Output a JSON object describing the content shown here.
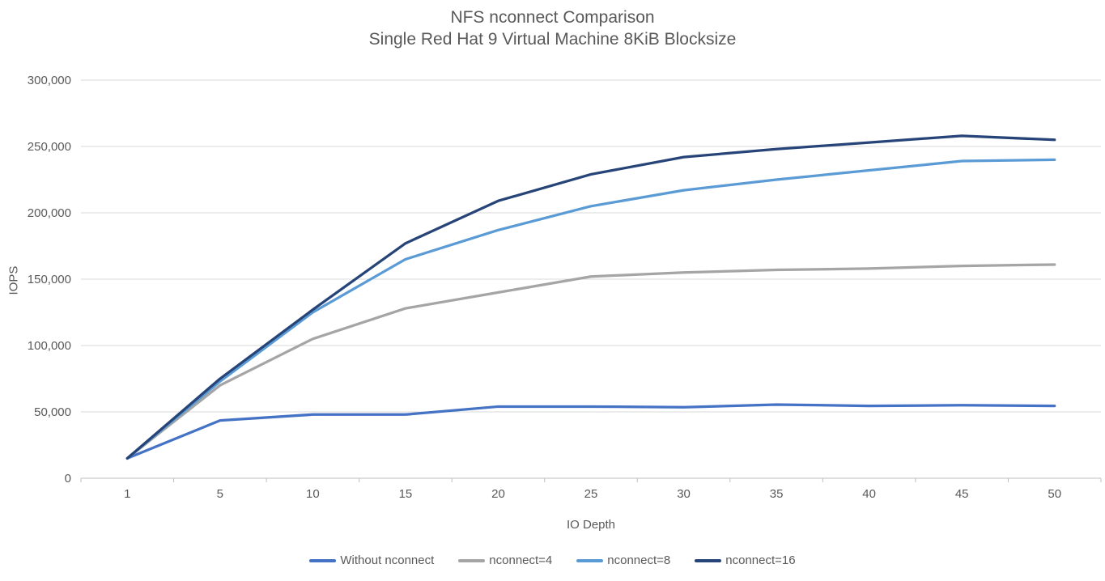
{
  "chart_data": {
    "type": "line",
    "title": "NFS nconnect Comparison",
    "subtitle": "Single Red Hat 9 Virtual Machine 8KiB Blocksize",
    "xlabel": "IO Depth",
    "ylabel": "IOPS",
    "categories": [
      1,
      5,
      10,
      15,
      20,
      25,
      30,
      35,
      40,
      45,
      50
    ],
    "ylim": [
      0,
      300000
    ],
    "ytick_step": 50000,
    "ytick_labels": [
      "0",
      "50,000",
      "100,000",
      "150,000",
      "200,000",
      "250,000",
      "300,000"
    ],
    "grid": "horizontal",
    "legend_position": "bottom",
    "colors": {
      "text": "#595959",
      "gridline": "#D9D9D9",
      "axis": "#BFBFBF"
    },
    "series": [
      {
        "name": "Without nconnect",
        "color": "#4472C4",
        "values": [
          15000,
          43500,
          48000,
          48000,
          54000,
          54000,
          53500,
          55500,
          54500,
          55000,
          54500
        ]
      },
      {
        "name": "nconnect=4",
        "color": "#A5A5A5",
        "values": [
          15000,
          70000,
          105000,
          128000,
          140000,
          152000,
          155000,
          157000,
          158000,
          160000,
          161000
        ]
      },
      {
        "name": "nconnect=8",
        "color": "#5B9BD5",
        "values": [
          15000,
          73000,
          125000,
          165000,
          187000,
          205000,
          217000,
          225000,
          232000,
          239000,
          240000
        ]
      },
      {
        "name": "nconnect=16",
        "color": "#264478",
        "values": [
          15000,
          75000,
          127000,
          177000,
          209000,
          229000,
          242000,
          248000,
          253000,
          258000,
          255000
        ]
      }
    ]
  }
}
